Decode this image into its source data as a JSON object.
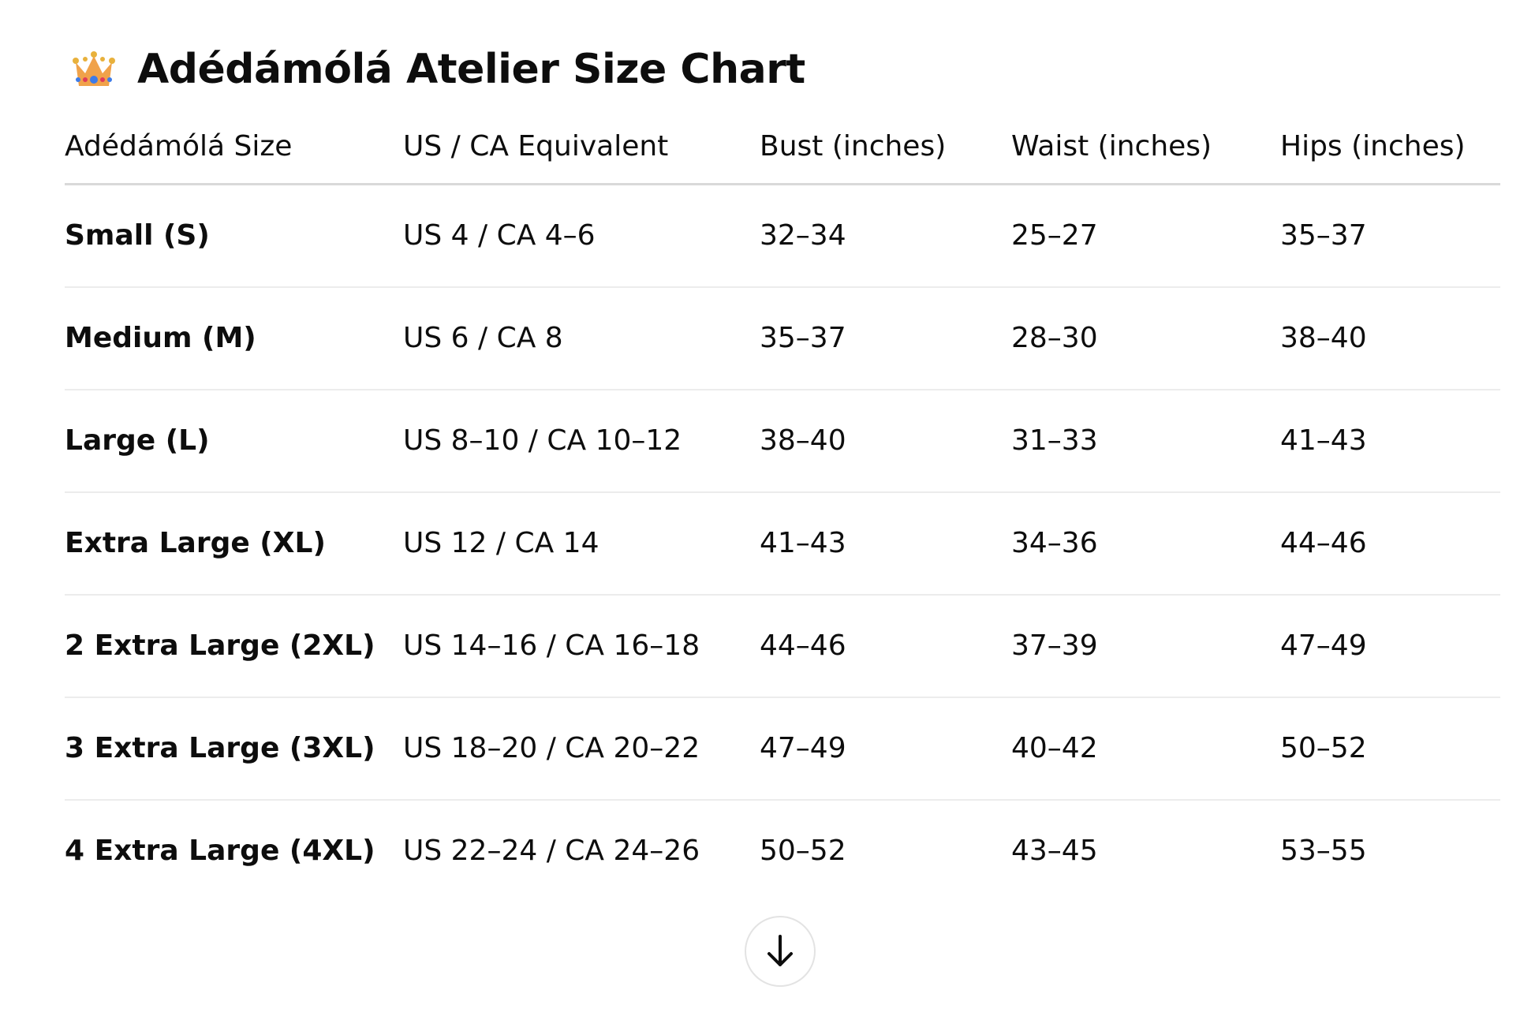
{
  "title": "Adédámólá Atelier Size Chart",
  "title_icon": "crown-emoji",
  "table": {
    "headers": [
      "Adédámólá Size",
      "US / CA Equivalent",
      "Bust (inches)",
      "Waist (inches)",
      "Hips (inches)"
    ],
    "rows": [
      [
        "Small (S)",
        "US 4 / CA 4–6",
        "32–34",
        "25–27",
        "35–37"
      ],
      [
        "Medium (M)",
        "US 6 / CA 8",
        "35–37",
        "28–30",
        "38–40"
      ],
      [
        "Large (L)",
        "US 8–10 / CA 10–12",
        "38–40",
        "31–33",
        "41–43"
      ],
      [
        "Extra Large (XL)",
        "US 12 / CA 14",
        "41–43",
        "34–36",
        "44–46"
      ],
      [
        "2 Extra Large (2XL)",
        "US 14–16 / CA 16–18",
        "44–46",
        "37–39",
        "47–49"
      ],
      [
        "3 Extra Large (3XL)",
        "US 18–20 / CA 20–22",
        "47–49",
        "40–42",
        "50–52"
      ],
      [
        "4 Extra Large (4XL)",
        "US 22–24 / CA 24–26",
        "50–52",
        "43–45",
        "53–55"
      ]
    ]
  },
  "scroll_button_icon": "arrow-down-icon"
}
